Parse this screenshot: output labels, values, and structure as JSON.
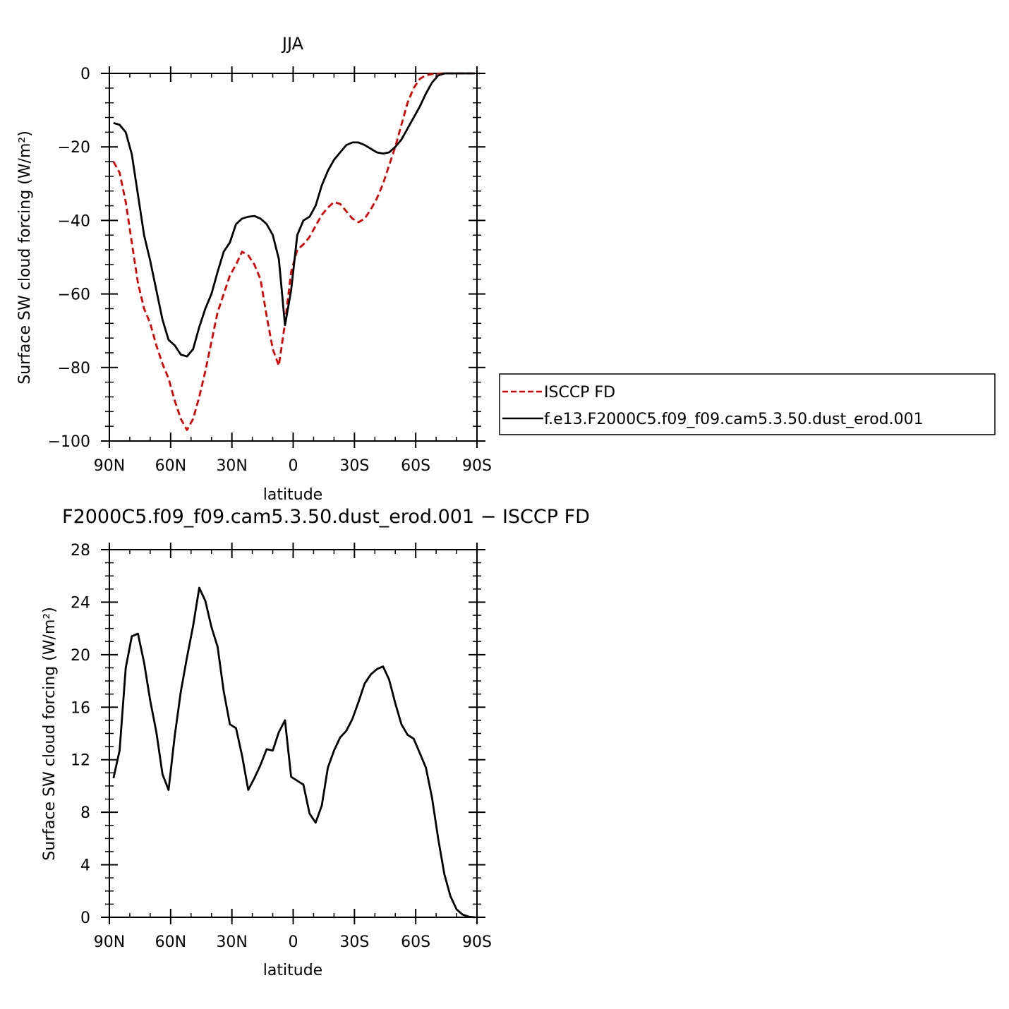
{
  "chart_data": [
    {
      "type": "line",
      "title": "JJA",
      "xlabel": "latitude",
      "ylabel": "Surface SW cloud forcing (W/m²)",
      "xlim": [
        90,
        -90
      ],
      "ylim": [
        -100,
        0
      ],
      "x_ticks": [
        {
          "v": 90,
          "label": "90N"
        },
        {
          "v": 60,
          "label": "60N"
        },
        {
          "v": 30,
          "label": "30N"
        },
        {
          "v": 0,
          "label": "0"
        },
        {
          "v": -30,
          "label": "30S"
        },
        {
          "v": -60,
          "label": "60S"
        },
        {
          "v": -90,
          "label": "90S"
        }
      ],
      "y_ticks": [
        {
          "v": 0,
          "label": "0"
        },
        {
          "v": -20,
          "label": "−20"
        },
        {
          "v": -40,
          "label": "−40"
        },
        {
          "v": -60,
          "label": "−60"
        },
        {
          "v": -80,
          "label": "−80"
        },
        {
          "v": -100,
          "label": "−100"
        }
      ],
      "legend": {
        "placement": "right"
      },
      "series": [
        {
          "name": "ISCCP FD",
          "color": "#e00000",
          "dash": true,
          "x": [
            88,
            85,
            82,
            79,
            76,
            73,
            70,
            67,
            64,
            61,
            58,
            55,
            52,
            49,
            46,
            43,
            40,
            37,
            34,
            31,
            28,
            25,
            22,
            19,
            16,
            13,
            10,
            7,
            4,
            1,
            -2,
            -5,
            -8,
            -11,
            -14,
            -17,
            -20,
            -23,
            -26,
            -29,
            -32,
            -35,
            -38,
            -41,
            -44,
            -47,
            -50,
            -53,
            -56,
            -59,
            -62,
            -65,
            -68,
            -71,
            -74,
            -77,
            -80,
            -83,
            -86,
            -89
          ],
          "y": [
            -24,
            -27,
            -35,
            -46,
            -57,
            -64,
            -68,
            -74,
            -79,
            -83,
            -89,
            -94,
            -97,
            -94,
            -88,
            -81,
            -73,
            -65,
            -60,
            -55,
            -52,
            -48.5,
            -49.5,
            -52,
            -56,
            -66,
            -75,
            -79.5,
            -68,
            -54,
            -48,
            -46.5,
            -44.5,
            -41.5,
            -38.5,
            -36.5,
            -35,
            -35.5,
            -37.5,
            -39.5,
            -40.5,
            -39.5,
            -37,
            -34,
            -30,
            -25,
            -20,
            -14,
            -8,
            -4,
            -1.5,
            -0.5,
            -0.2,
            -0.1,
            0,
            0,
            0,
            0,
            0,
            0
          ]
        },
        {
          "name": "f.e13.F2000C5.f09_f09.cam5.3.50.dust_erod.001",
          "color": "#000000",
          "dash": false,
          "x": [
            88,
            85,
            82,
            79,
            76,
            73,
            70,
            67,
            64,
            61,
            58,
            55,
            52,
            49,
            46,
            43,
            40,
            37,
            34,
            31,
            28,
            25,
            22,
            19,
            16,
            13,
            10,
            7,
            4,
            1,
            -2,
            -5,
            -8,
            -11,
            -14,
            -17,
            -20,
            -23,
            -26,
            -29,
            -32,
            -35,
            -38,
            -41,
            -44,
            -47,
            -50,
            -53,
            -56,
            -59,
            -62,
            -65,
            -68,
            -71,
            -74,
            -77,
            -80,
            -83,
            -86,
            -89
          ],
          "y": [
            -13.5,
            -14,
            -16,
            -22,
            -33,
            -44,
            -51,
            -59,
            -67,
            -72.5,
            -74,
            -76.5,
            -77,
            -75,
            -69,
            -64,
            -60,
            -54,
            -48.5,
            -46,
            -41,
            -39.5,
            -39,
            -38.8,
            -39.5,
            -41,
            -44,
            -50.5,
            -68.5,
            -59,
            -44,
            -40,
            -39,
            -36,
            -30.5,
            -26.5,
            -23.5,
            -21.5,
            -19.5,
            -18.8,
            -18.8,
            -19.5,
            -20.5,
            -21.5,
            -21.8,
            -21.5,
            -20,
            -18,
            -15,
            -12,
            -9,
            -5.5,
            -2.5,
            -0.6,
            0,
            0,
            0,
            0,
            0,
            0
          ]
        }
      ]
    },
    {
      "type": "line",
      "title": "F2000C5.f09_f09.cam5.3.50.dust_erod.001 − ISCCP FD",
      "xlabel": "latitude",
      "ylabel": "Surface SW cloud forcing (W/m²)",
      "xlim": [
        90,
        -90
      ],
      "ylim": [
        0,
        28
      ],
      "x_ticks": [
        {
          "v": 90,
          "label": "90N"
        },
        {
          "v": 60,
          "label": "60N"
        },
        {
          "v": 30,
          "label": "30N"
        },
        {
          "v": 0,
          "label": "0"
        },
        {
          "v": -30,
          "label": "30S"
        },
        {
          "v": -60,
          "label": "60S"
        },
        {
          "v": -90,
          "label": "90S"
        }
      ],
      "y_ticks": [
        {
          "v": 28,
          "label": "28"
        },
        {
          "v": 24,
          "label": "24"
        },
        {
          "v": 20,
          "label": "20"
        },
        {
          "v": 16,
          "label": "16"
        },
        {
          "v": 12,
          "label": "12"
        },
        {
          "v": 8,
          "label": "8"
        },
        {
          "v": 4,
          "label": "4"
        },
        {
          "v": 0,
          "label": "0"
        }
      ],
      "series": [
        {
          "color": "#000000",
          "dash": false,
          "x": [
            88,
            85,
            82,
            79,
            76,
            73,
            70,
            67,
            64,
            61,
            58,
            55,
            52,
            49,
            46,
            43,
            40,
            37,
            34,
            31,
            28,
            25,
            22,
            19,
            16,
            13,
            10,
            7,
            4,
            1,
            -2,
            -5,
            -8,
            -11,
            -14,
            -17,
            -20,
            -23,
            -26,
            -29,
            -32,
            -35,
            -38,
            -41,
            -44,
            -47,
            -50,
            -53,
            -56,
            -59,
            -62,
            -65,
            -68,
            -71,
            -74,
            -77,
            -80,
            -83,
            -86,
            -89
          ],
          "y": [
            10.6,
            12.7,
            19,
            21.4,
            21.6,
            19.4,
            16.5,
            14.1,
            10.9,
            9.7,
            13.8,
            17.2,
            19.8,
            22.2,
            25.1,
            24.1,
            22.1,
            20.6,
            17.2,
            14.7,
            14.4,
            12.3,
            9.7,
            10.6,
            11.6,
            12.8,
            12.7,
            14.1,
            15,
            10.7,
            10.4,
            10.1,
            7.9,
            7.2,
            8.5,
            11.4,
            12.7,
            13.7,
            14.2,
            15.1,
            16.4,
            17.8,
            18.5,
            18.9,
            19.1,
            18.1,
            16.3,
            14.7,
            13.9,
            13.6,
            12.5,
            11.4,
            9.1,
            6,
            3.3,
            1.6,
            0.6,
            0.2,
            0.05,
            0
          ]
        }
      ]
    }
  ]
}
